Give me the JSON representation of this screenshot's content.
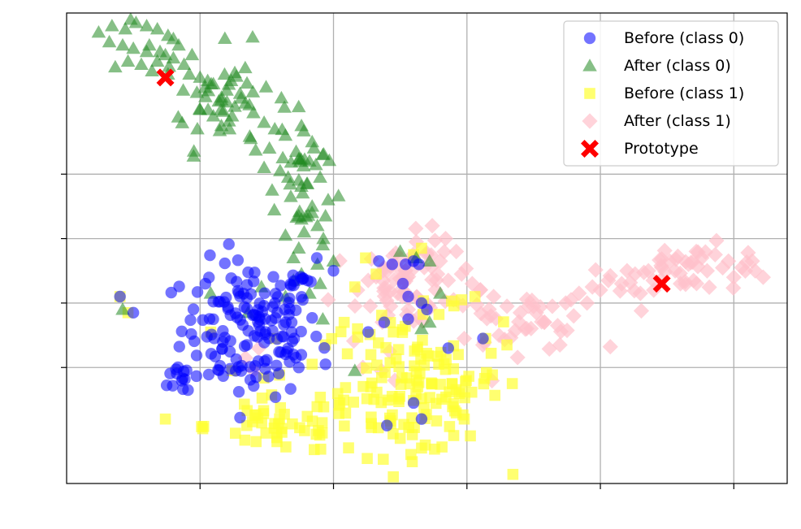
{
  "chart_data": {
    "type": "scatter",
    "title": "",
    "xlabel": "",
    "ylabel": "",
    "xlim": [
      -10.0,
      17.0
    ],
    "ylim": [
      -5.6,
      9.0
    ],
    "xticks": [
      -5,
      0,
      5,
      10,
      15
    ],
    "yticks": [
      -2,
      0,
      2,
      4
    ],
    "tick_labels_visible": false,
    "grid": true,
    "legend_position": "upper right",
    "colors": {
      "before_class0": "#0000ff",
      "after_class0": "#228b22",
      "before_class1": "#ffff33",
      "after_class1": "#ffc0cb",
      "prototype": "#ff0000"
    },
    "series": [
      {
        "name": "Before (class 0)",
        "marker": "circle",
        "color": "#0000ff",
        "clusters": [
          {
            "cx": -3.1,
            "cy": -0.8,
            "sx": 1.3,
            "sy": 1.05,
            "n": 150
          },
          {
            "cx": -5.6,
            "cy": -2.3,
            "sx": 0.3,
            "sy": 0.3,
            "n": 12
          },
          {
            "cx": -1.5,
            "cy": 0.8,
            "sx": 0.6,
            "sy": 0.4,
            "n": 8
          }
        ],
        "points": [
          [
            -8.0,
            0.2
          ],
          [
            -7.5,
            -0.3
          ],
          [
            2.7,
            1.2
          ],
          [
            3.0,
            1.3
          ],
          [
            3.2,
            1.2
          ],
          [
            2.6,
            0.6
          ],
          [
            2.2,
            1.2
          ],
          [
            1.7,
            1.3
          ],
          [
            0.0,
            1.0
          ],
          [
            2.8,
            -0.5
          ],
          [
            3.5,
            -0.2
          ],
          [
            2.8,
            0.2
          ],
          [
            3.3,
            0.0
          ],
          [
            1.9,
            -0.6
          ],
          [
            1.3,
            -0.9
          ],
          [
            -0.3,
            -1.9
          ],
          [
            -1.3,
            -2.0
          ],
          [
            -2.9,
            -2.3
          ],
          [
            -4.8,
            0.6
          ],
          [
            3.0,
            -3.1
          ],
          [
            3.3,
            -3.6
          ],
          [
            2.0,
            -3.8
          ],
          [
            5.6,
            -1.1
          ],
          [
            4.3,
            -1.4
          ],
          [
            -1.5,
            -1.6
          ]
        ]
      },
      {
        "name": "After (class 0)",
        "marker": "triangle",
        "color": "#228b22",
        "points": [
          [
            -8.8,
            8.4
          ],
          [
            -8.3,
            8.6
          ],
          [
            -7.8,
            8.5
          ],
          [
            -7.4,
            8.7
          ],
          [
            -7.0,
            8.6
          ],
          [
            -6.6,
            8.5
          ],
          [
            -6.2,
            8.3
          ],
          [
            -5.8,
            8.0
          ],
          [
            -5.3,
            7.7
          ],
          [
            -8.4,
            8.1
          ],
          [
            -7.9,
            8.0
          ],
          [
            -7.5,
            7.9
          ],
          [
            -7.0,
            7.8
          ],
          [
            -6.5,
            7.8
          ],
          [
            -6.0,
            7.6
          ],
          [
            -5.6,
            7.4
          ],
          [
            -7.7,
            7.5
          ],
          [
            -7.2,
            7.4
          ],
          [
            -6.8,
            7.2
          ],
          [
            -6.2,
            7.1
          ],
          [
            -5.4,
            7.1
          ],
          [
            -5.0,
            7.0
          ],
          [
            -4.5,
            6.8
          ],
          [
            -4.0,
            6.6
          ],
          [
            -3.5,
            6.5
          ],
          [
            -4.8,
            6.4
          ],
          [
            -4.2,
            6.3
          ],
          [
            -3.7,
            6.1
          ],
          [
            -3.3,
            6.2
          ],
          [
            -5.0,
            6.0
          ],
          [
            -4.5,
            5.8
          ],
          [
            -5.1,
            5.4
          ],
          [
            -4.2,
            5.5
          ],
          [
            -3.8,
            5.8
          ],
          [
            -3.0,
            5.9
          ],
          [
            -2.6,
            5.6
          ],
          [
            -2.2,
            5.4
          ],
          [
            -1.8,
            5.2
          ],
          [
            -1.2,
            5.5
          ],
          [
            -0.8,
            5.0
          ],
          [
            -2.4,
            4.8
          ],
          [
            -1.9,
            4.5
          ],
          [
            -1.4,
            4.7
          ],
          [
            -0.9,
            4.4
          ],
          [
            -0.4,
            4.6
          ],
          [
            -1.7,
            3.9
          ],
          [
            -1.0,
            3.7
          ],
          [
            -0.5,
            3.9
          ],
          [
            -1.6,
            3.3
          ],
          [
            -0.8,
            3.0
          ],
          [
            -0.2,
            3.2
          ],
          [
            -1.2,
            2.6
          ],
          [
            -0.6,
            2.4
          ],
          [
            -1.8,
            2.1
          ],
          [
            -0.4,
            1.8
          ],
          [
            -1.3,
            1.7
          ],
          [
            -0.6,
            1.2
          ],
          [
            0.0,
            1.3
          ],
          [
            -1.2,
            0.9
          ],
          [
            -0.5,
            0.6
          ],
          [
            -0.9,
            0.3
          ],
          [
            -1.5,
            1.4
          ],
          [
            -2.6,
            4.2
          ],
          [
            -2.0,
            4.1
          ],
          [
            -3.1,
            5.1
          ],
          [
            -2.3,
            3.5
          ],
          [
            -1.1,
            2.2
          ],
          [
            -0.3,
            2.7
          ],
          [
            -6.9,
            8.0
          ],
          [
            -6.0,
            8.2
          ],
          [
            -7.6,
            8.8
          ],
          [
            -7.0,
            9.0
          ],
          [
            -6.3,
            7.7
          ],
          [
            -4.7,
            6.0
          ],
          [
            -3.9,
            5.4
          ],
          [
            -6.6,
            7.5
          ],
          [
            2.5,
            1.6
          ],
          [
            3.1,
            1.4
          ],
          [
            3.6,
            1.3
          ],
          [
            4.0,
            0.3
          ],
          [
            3.6,
            -0.6
          ],
          [
            3.3,
            -0.8
          ],
          [
            -3.2,
            -0.3
          ],
          [
            -4.6,
            0.3
          ],
          [
            -1.8,
            0.2
          ],
          [
            -7.9,
            -0.2
          ],
          [
            0.8,
            -2.1
          ],
          [
            -1.5,
            0.7
          ],
          [
            -0.4,
            -0.5
          ],
          [
            -2.7,
            0.5
          ]
        ],
        "clusters": [
          {
            "cx": -4.0,
            "cy": 6.4,
            "sx": 1.2,
            "sy": 0.8,
            "n": 40
          },
          {
            "cx": -1.2,
            "cy": 3.6,
            "sx": 0.5,
            "sy": 1.0,
            "n": 25
          }
        ]
      },
      {
        "name": "Before (class 1)",
        "marker": "square",
        "color": "#ffff33",
        "clusters": [
          {
            "cx": 2.9,
            "cy": -2.5,
            "sx": 1.7,
            "sy": 1.1,
            "n": 120
          },
          {
            "cx": -2.0,
            "cy": -3.8,
            "sx": 1.4,
            "sy": 0.45,
            "n": 45
          },
          {
            "cx": 3.8,
            "cy": -3.2,
            "sx": 0.9,
            "sy": 0.6,
            "n": 20
          }
        ],
        "points": [
          [
            -8.0,
            0.2
          ],
          [
            -7.7,
            -0.3
          ],
          [
            4.8,
            0.1
          ],
          [
            5.3,
            0.2
          ],
          [
            5.7,
            -1.1
          ],
          [
            6.5,
            -1.3
          ],
          [
            3.0,
            1.5
          ],
          [
            3.3,
            1.7
          ],
          [
            -2.9,
            -4.3
          ],
          [
            -0.3,
            -1.3
          ],
          [
            0.4,
            -0.6
          ],
          [
            0.9,
            -0.8
          ],
          [
            2.9,
            -4.7
          ],
          [
            3.3,
            -4.5
          ],
          [
            2.5,
            -4.2
          ],
          [
            4.9,
            -3.6
          ],
          [
            6.7,
            -2.5
          ],
          [
            -4.6,
            -0.9
          ],
          [
            -3.8,
            -2.1
          ],
          [
            1.2,
            1.4
          ],
          [
            1.6,
            0.9
          ],
          [
            -2.2,
            -1.1
          ],
          [
            -0.8,
            -1.9
          ],
          [
            1.4,
            -1.6
          ],
          [
            0.8,
            0.5
          ],
          [
            -6.3,
            -3.6
          ],
          [
            -4.9,
            -3.9
          ]
        ]
      },
      {
        "name": "After (class 1)",
        "marker": "diamond",
        "color": "#ffc0cb",
        "points": [
          [
            2.3,
            1.2
          ],
          [
            2.7,
            1.0
          ],
          [
            3.0,
            1.4
          ],
          [
            3.5,
            1.5
          ],
          [
            3.9,
            0.9
          ],
          [
            4.3,
            0.7
          ],
          [
            4.8,
            0.9
          ],
          [
            5.2,
            0.6
          ],
          [
            5.5,
            0.4
          ],
          [
            6.0,
            0.2
          ],
          [
            6.5,
            -0.1
          ],
          [
            7.0,
            -0.3
          ],
          [
            7.6,
            -0.3
          ],
          [
            8.2,
            -0.1
          ],
          [
            8.7,
            0.0
          ],
          [
            9.2,
            0.3
          ],
          [
            9.7,
            0.5
          ],
          [
            10.3,
            0.7
          ],
          [
            10.8,
            0.6
          ],
          [
            11.3,
            0.9
          ],
          [
            11.8,
            1.0
          ],
          [
            12.3,
            1.1
          ],
          [
            12.8,
            1.0
          ],
          [
            13.3,
            1.2
          ],
          [
            13.8,
            1.4
          ],
          [
            14.3,
            1.5
          ],
          [
            14.8,
            1.3
          ],
          [
            15.3,
            1.1
          ],
          [
            15.8,
            1.0
          ],
          [
            16.1,
            0.8
          ],
          [
            12.0,
            0.4
          ],
          [
            11.5,
            0.3
          ],
          [
            10.0,
            0.4
          ],
          [
            9.0,
            -0.4
          ],
          [
            8.4,
            -0.7
          ],
          [
            6.2,
            -1.0
          ],
          [
            5.6,
            -1.3
          ],
          [
            4.9,
            -1.1
          ],
          [
            3.7,
            2.4
          ],
          [
            4.2,
            2.0
          ],
          [
            3.1,
            1.9
          ],
          [
            2.4,
            0.3
          ],
          [
            2.8,
            -0.2
          ],
          [
            3.3,
            0.0
          ],
          [
            1.3,
            0.7
          ],
          [
            1.9,
            1.1
          ],
          [
            0.9,
            0.4
          ],
          [
            2.1,
            -1.5
          ],
          [
            1.8,
            -2.1
          ],
          [
            -3.0,
            -2.1
          ],
          [
            -3.3,
            -1.7
          ],
          [
            -2.8,
            -1.4
          ],
          [
            1.1,
            -2.0
          ],
          [
            2.3,
            -2.4
          ],
          [
            -0.2,
            0.1
          ],
          [
            4.5,
            0.1
          ],
          [
            5.9,
            -0.4
          ],
          [
            7.3,
            -0.1
          ],
          [
            7.9,
            -0.6
          ],
          [
            3.4,
            1.1
          ],
          [
            4.0,
            1.3
          ],
          [
            11.0,
            1.0
          ],
          [
            12.6,
            1.3
          ],
          [
            14.0,
            1.0
          ],
          [
            15.0,
            0.8
          ],
          [
            13.0,
            0.6
          ],
          [
            2.6,
            0.8
          ],
          [
            4.6,
            1.6
          ],
          [
            9.5,
            0.0
          ],
          [
            8.9,
            0.1
          ]
        ],
        "clusters": [
          {
            "cx": 2.8,
            "cy": 0.6,
            "sx": 0.9,
            "sy": 0.7,
            "n": 55
          },
          {
            "cx": 13.4,
            "cy": 1.1,
            "sx": 1.6,
            "sy": 0.35,
            "n": 35
          },
          {
            "cx": 6.8,
            "cy": -0.6,
            "sx": 1.5,
            "sy": 0.45,
            "n": 30
          }
        ]
      }
    ],
    "prototypes": [
      {
        "x": -6.3,
        "y": 7.0
      },
      {
        "x": 12.3,
        "y": 0.6
      }
    ],
    "legend": [
      {
        "label": "Before (class 0)",
        "marker": "circle",
        "color": "#0000ff",
        "alpha": 0.55
      },
      {
        "label": "After (class 0)",
        "marker": "triangle",
        "color": "#228b22",
        "alpha": 0.55
      },
      {
        "label": "Before (class 1)",
        "marker": "square",
        "color": "#ffff33",
        "alpha": 0.7
      },
      {
        "label": "After (class 1)",
        "marker": "diamond",
        "color": "#ffc0cb",
        "alpha": 0.7
      },
      {
        "label": "Prototype",
        "marker": "x",
        "color": "#ff0000",
        "alpha": 1.0
      }
    ]
  }
}
